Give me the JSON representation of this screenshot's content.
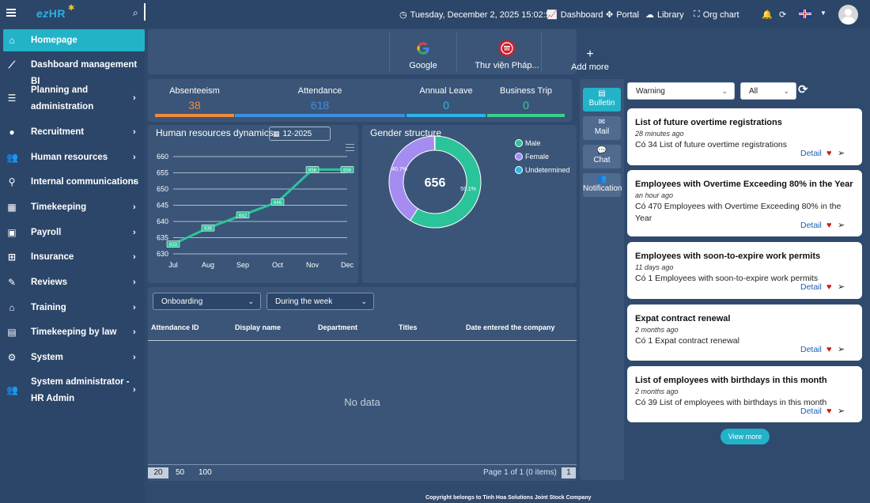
{
  "header": {
    "logo_ez": "ez",
    "logo_hr": "HR",
    "datetime": "Tuesday, December 2, 2025 15:02:56",
    "links": [
      "Dashboard",
      "Portal",
      "Library",
      "Org chart"
    ],
    "language_flag": "united-kingdom-flag"
  },
  "sidebar": {
    "items": [
      {
        "label": "Homepage",
        "icon": "home-icon",
        "active": true
      },
      {
        "label": "Dashboard management BI",
        "icon": "chart-line-icon"
      },
      {
        "label": "Planning and administration",
        "icon": "list-icon"
      },
      {
        "label": "Recruitment",
        "icon": "user-circle-icon"
      },
      {
        "label": "Human resources",
        "icon": "users-icon"
      },
      {
        "label": "Internal communications",
        "icon": "satellite-icon"
      },
      {
        "label": "Timekeeping",
        "icon": "calendar-icon"
      },
      {
        "label": "Payroll",
        "icon": "money-icon"
      },
      {
        "label": "Insurance",
        "icon": "plus-square-icon"
      },
      {
        "label": "Reviews",
        "icon": "edit-icon"
      },
      {
        "label": "Training",
        "icon": "institution-icon"
      },
      {
        "label": "Timekeeping by law",
        "icon": "id-card-icon"
      },
      {
        "label": "System",
        "icon": "cogs-icon"
      },
      {
        "label": "System administrator - HR Admin",
        "icon": "users-cog-icon"
      }
    ]
  },
  "shortcuts": [
    {
      "label": "Google",
      "icon": "google-icon"
    },
    {
      "label": "Thư viện Pháp...",
      "icon": "library-logo-icon"
    },
    {
      "label": "Add more",
      "icon": "plus-icon"
    }
  ],
  "kpis": [
    {
      "title": "Absenteeism",
      "value": "38",
      "color": "#f08a3c"
    },
    {
      "title": "Attendance",
      "value": "618",
      "color": "#3f8fe0"
    },
    {
      "title": "Annual Leave",
      "value": "0",
      "color": "#2bb5e8"
    },
    {
      "title": "Business Trip",
      "value": "0",
      "color": "#3ccf8e"
    }
  ],
  "hr_dynamics": {
    "title": "Human resources dynamics",
    "month": "12-2025"
  },
  "gender": {
    "title": "Gender structure",
    "total": "656",
    "legend": [
      "Male",
      "Female",
      "Undetermined"
    ],
    "male_pct_label": "59.1%",
    "female_pct_label": "40.7%"
  },
  "chart_data": [
    {
      "type": "line",
      "title": "Human resources dynamics",
      "x": [
        "Jul",
        "Aug",
        "Sep",
        "Oct",
        "Nov",
        "Dec"
      ],
      "series": [
        {
          "values": [
            633,
            638,
            642,
            646,
            656,
            656
          ]
        }
      ],
      "ylim": [
        630,
        660
      ],
      "yticks": [
        630,
        635,
        640,
        645,
        650,
        655,
        660
      ],
      "data_labels": [
        "633",
        "638",
        "642",
        "646",
        "656",
        "656"
      ],
      "color": "#2bc39a",
      "grid": true
    },
    {
      "type": "pie",
      "title": "Gender structure",
      "labels": [
        "Male",
        "Female",
        "Undetermined"
      ],
      "values": [
        59.1,
        40.7,
        0.2
      ],
      "colors": [
        "#2bc39a",
        "#a58cf0",
        "#2bb5e8"
      ],
      "center_label": "656"
    }
  ],
  "employee_table": {
    "filter_1": "Onboarding",
    "filter_2": "During the week",
    "columns": [
      "Attendance ID",
      "Display name",
      "Department",
      "Titles",
      "Date entered the company"
    ],
    "empty_text": "No data",
    "page_sizes": [
      "20",
      "50",
      "100"
    ],
    "pagination": "Page 1 of 1 (0 items)",
    "current_page": "1"
  },
  "side_tabs": [
    {
      "label": "Bulletin",
      "icon": "newspaper-icon",
      "active": true
    },
    {
      "label": "Mail",
      "icon": "envelope-icon"
    },
    {
      "label": "Chat",
      "icon": "comments-icon"
    },
    {
      "label": "Notification",
      "icon": "users-icon"
    }
  ],
  "bulletin": {
    "filter_type": "Warning",
    "filter_scope": "All",
    "cards": [
      {
        "title": "List of future overtime registrations",
        "time": "28 minutes ago",
        "desc": "Có 34 List of future overtime registrations",
        "detail": "Detail"
      },
      {
        "title": "Employees with Overtime Exceeding 80% in the Year",
        "time": "an hour ago",
        "desc": "Có 470 Employees with Overtime Exceeding 80% in the Year",
        "detail": "Detail"
      },
      {
        "title": "Employees with soon-to-expire work permits",
        "time": "11 days ago",
        "desc": "Có 1 Employees with soon-to-expire work permits",
        "detail": "Detail"
      },
      {
        "title": "Expat contract renewal",
        "time": "2 months ago",
        "desc": "Có 1 Expat contract renewal",
        "detail": "Detail"
      },
      {
        "title": "List of employees with birthdays in this month",
        "time": "2 months ago",
        "desc": "Có 39 List of employees with birthdays in this month",
        "detail": "Detail"
      }
    ],
    "view_more": "View more"
  },
  "footer": "Copyright belongs to Tinh Hoa Solutions Joint Stock Company"
}
